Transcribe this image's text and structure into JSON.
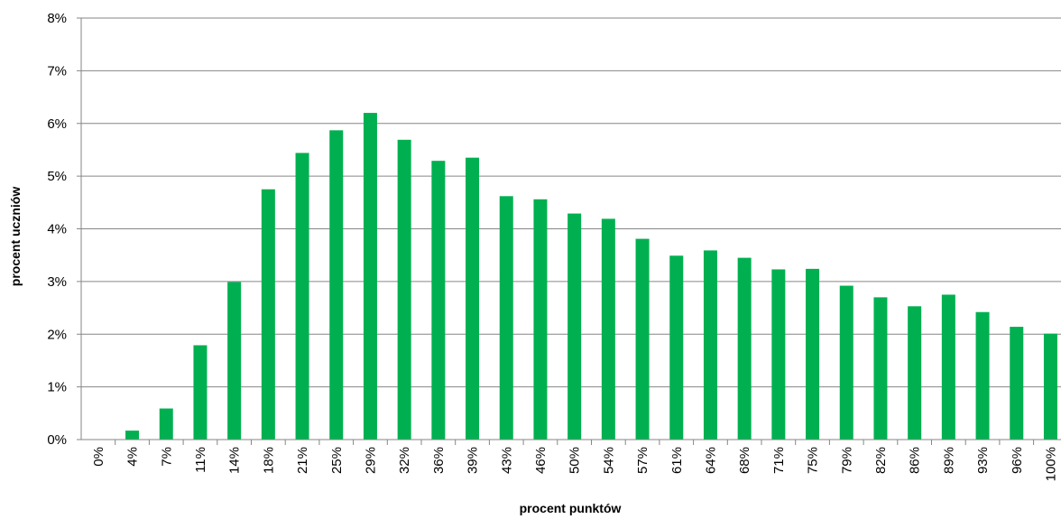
{
  "chart_data": {
    "type": "bar",
    "xlabel": "procent  punktów",
    "ylabel": "procent  uczniów",
    "categories": [
      "0%",
      "4%",
      "7%",
      "11%",
      "14%",
      "18%",
      "21%",
      "25%",
      "29%",
      "32%",
      "36%",
      "39%",
      "43%",
      "46%",
      "50%",
      "54%",
      "57%",
      "61%",
      "64%",
      "68%",
      "71%",
      "75%",
      "79%",
      "82%",
      "86%",
      "89%",
      "93%",
      "96%",
      "100%"
    ],
    "values": [
      0.0,
      0.17,
      0.59,
      1.79,
      2.99,
      4.75,
      5.44,
      5.87,
      6.2,
      5.69,
      5.29,
      5.35,
      4.62,
      4.56,
      4.29,
      4.19,
      3.81,
      3.49,
      3.59,
      3.45,
      3.23,
      3.24,
      2.92,
      2.7,
      2.53,
      2.75,
      2.42,
      2.14,
      2.01
    ],
    "yticks": [
      "0%",
      "1%",
      "2%",
      "3%",
      "4%",
      "5%",
      "6%",
      "7%",
      "8%"
    ],
    "ylim": [
      0,
      8
    ],
    "grid": true,
    "bar_color": "#00b050",
    "grid_color": "#868686"
  }
}
